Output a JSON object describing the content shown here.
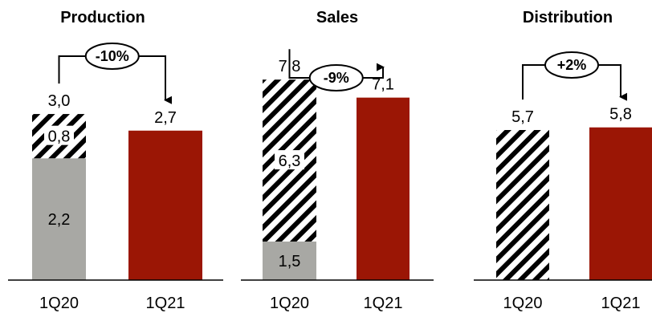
{
  "colors": {
    "base": "#a8a8a4",
    "q1_21": "#9b1605",
    "hatch": "#000000"
  },
  "chart_data": [
    {
      "type": "bar",
      "stacked": true,
      "title": "Production",
      "categories": [
        "1Q20",
        "1Q21"
      ],
      "bars": [
        {
          "category": "1Q20",
          "total_label": "3,0",
          "segments": [
            {
              "value": 2.2,
              "label": "2,2",
              "style": "solid-gray"
            },
            {
              "value": 0.8,
              "label": "0,8",
              "style": "hatched"
            }
          ]
        },
        {
          "category": "1Q21",
          "total_label": "2,7",
          "segments": [
            {
              "value": 2.7,
              "label": "",
              "style": "solid-red"
            }
          ]
        }
      ],
      "change_label": "-10%",
      "ylim": [
        0,
        3.9
      ]
    },
    {
      "type": "bar",
      "stacked": true,
      "title": "Sales",
      "categories": [
        "1Q20",
        "1Q21"
      ],
      "bars": [
        {
          "category": "1Q20",
          "total_label": "7,8",
          "segments": [
            {
              "value": 1.5,
              "label": "1,5",
              "style": "solid-gray"
            },
            {
              "value": 6.3,
              "label": "6,3",
              "style": "hatched"
            }
          ]
        },
        {
          "category": "1Q21",
          "total_label": "7,1",
          "segments": [
            {
              "value": 7.1,
              "label": "",
              "style": "solid-red"
            }
          ]
        }
      ],
      "change_label": "-9%",
      "ylim": [
        0,
        8.4
      ]
    },
    {
      "type": "bar",
      "stacked": true,
      "title": "Distribution",
      "categories": [
        "1Q20",
        "1Q21"
      ],
      "bars": [
        {
          "category": "1Q20",
          "total_label": "5,7",
          "segments": [
            {
              "value": 5.7,
              "label": "",
              "style": "hatched"
            }
          ]
        },
        {
          "category": "1Q21",
          "total_label": "5,8",
          "segments": [
            {
              "value": 5.8,
              "label": "",
              "style": "solid-red"
            }
          ]
        }
      ],
      "change_label": "+2%",
      "ylim": [
        0,
        8.2
      ]
    }
  ]
}
